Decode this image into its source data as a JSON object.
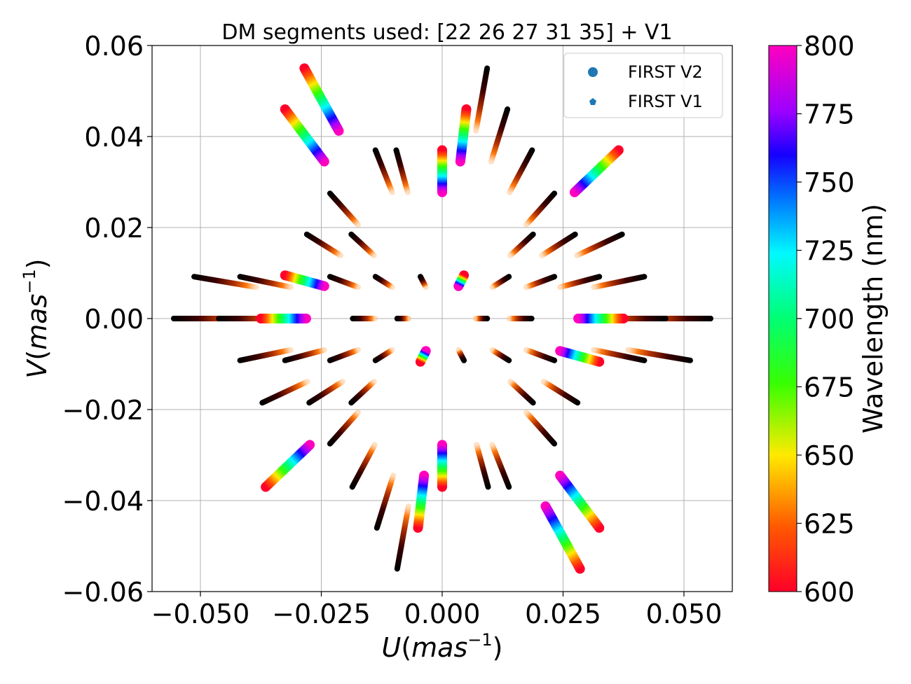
{
  "chart_data": {
    "type": "scatter",
    "title": "DM segments used: [22 26 27 31 35] + V1",
    "xlabel_var": "U",
    "ylabel_var": "V",
    "unit": "mas",
    "unit_exp": "−1",
    "xlim": [
      -0.06,
      0.06
    ],
    "ylim": [
      -0.06,
      0.06
    ],
    "xticks": [
      {
        "value": -0.05,
        "label": "−0.050"
      },
      {
        "value": -0.025,
        "label": "−0.025"
      },
      {
        "value": 0.0,
        "label": "0.000"
      },
      {
        "value": 0.025,
        "label": "0.025"
      },
      {
        "value": 0.05,
        "label": "0.050"
      }
    ],
    "yticks": [
      {
        "value": 0.06,
        "label": "0.06"
      },
      {
        "value": 0.04,
        "label": "0.04"
      },
      {
        "value": 0.02,
        "label": "0.02"
      },
      {
        "value": 0.0,
        "label": "0.00"
      },
      {
        "value": -0.02,
        "label": "−0.02"
      },
      {
        "value": -0.04,
        "label": "−0.04"
      },
      {
        "value": -0.06,
        "label": "−0.06"
      }
    ],
    "grid": true,
    "legend_position": "top-right",
    "legend": [
      {
        "label": "FIRST V2",
        "marker": "circle",
        "color": "#1f77b4"
      },
      {
        "label": "FIRST V1",
        "marker": "pentagon",
        "color": "#1f77b4"
      }
    ],
    "colorbar": {
      "label": "Wavelength (nm)",
      "min": 600,
      "max": 800,
      "cmap": "gist_rainbow",
      "ticks": [
        "600",
        "625",
        "650",
        "675",
        "700",
        "725",
        "750",
        "775",
        "800"
      ]
    },
    "lambda_ratio": 0.75,
    "first_v2_baselines": [
      [
        -0.0285,
        0.055
      ],
      [
        -0.0325,
        0.046
      ],
      [
        0.0,
        0.037
      ],
      [
        0.0365,
        0.037
      ],
      [
        -0.0325,
        0.0095
      ],
      [
        -0.0375,
        0.0
      ],
      [
        0.0045,
        0.0095
      ],
      [
        0.005,
        0.046
      ]
    ],
    "first_v1_baselines": [
      [
        0.0093,
        0.055
      ],
      [
        0.0135,
        0.046
      ],
      [
        -0.0138,
        0.037
      ],
      [
        -0.0095,
        0.037
      ],
      [
        0.0186,
        0.037
      ],
      [
        -0.0232,
        0.0275
      ],
      [
        0.0232,
        0.0275
      ],
      [
        -0.028,
        0.0185
      ],
      [
        -0.0188,
        0.0185
      ],
      [
        0.0188,
        0.0185
      ],
      [
        0.0372,
        0.0185
      ],
      [
        0.0275,
        0.0185
      ],
      [
        -0.0513,
        0.0092
      ],
      [
        -0.0418,
        0.0092
      ],
      [
        -0.0232,
        0.0092
      ],
      [
        -0.0138,
        0.0092
      ],
      [
        -0.0045,
        0.0092
      ],
      [
        0.0138,
        0.0092
      ],
      [
        0.0232,
        0.0092
      ],
      [
        0.0325,
        0.0092
      ],
      [
        0.0418,
        0.0092
      ],
      [
        -0.0555,
        0.0
      ],
      [
        -0.0185,
        0.0
      ],
      [
        -0.0093,
        0.0
      ],
      [
        0.0093,
        0.0
      ],
      [
        0.0555,
        0.0
      ],
      [
        0.0462,
        0.0
      ]
    ]
  }
}
